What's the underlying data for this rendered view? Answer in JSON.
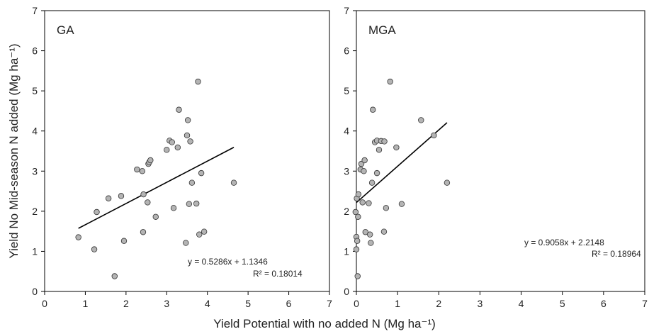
{
  "shared": {
    "xlabel": "Yield Potential with no added N (Mg ha⁻¹)",
    "ylabel": "Yield No Mid-season N added (Mg ha⁻¹)"
  },
  "chart_data": [
    {
      "type": "scatter",
      "title": "GA",
      "xlim": [
        0,
        7
      ],
      "ylim": [
        0,
        7
      ],
      "xticks": [
        "0",
        "1",
        "2",
        "3",
        "4",
        "5",
        "6",
        "7"
      ],
      "yticks": [
        "0",
        "1",
        "2",
        "3",
        "4",
        "5",
        "6",
        "7"
      ],
      "grid": false,
      "x": [
        0.83,
        1.22,
        1.28,
        1.57,
        1.72,
        1.88,
        1.95,
        2.27,
        2.4,
        2.42,
        2.43,
        2.53,
        2.55,
        2.57,
        2.6,
        2.73,
        3.0,
        3.07,
        3.13,
        3.17,
        3.27,
        3.3,
        3.47,
        3.5,
        3.52,
        3.55,
        3.58,
        3.62,
        3.73,
        3.77,
        3.8,
        3.85,
        3.92,
        4.65
      ],
      "y": [
        1.35,
        1.05,
        1.98,
        2.32,
        0.38,
        2.38,
        1.26,
        3.04,
        3.0,
        1.48,
        2.42,
        2.22,
        3.18,
        3.22,
        3.27,
        1.86,
        3.53,
        3.76,
        3.72,
        2.08,
        3.59,
        4.53,
        1.21,
        3.89,
        4.27,
        2.18,
        3.74,
        2.71,
        2.19,
        5.23,
        1.42,
        2.95,
        1.49,
        2.71
      ],
      "fit": {
        "slope": 0.5286,
        "intercept": 1.1346,
        "x_range": [
          0.83,
          4.65
        ]
      },
      "equation": "y = 0.5286x + 1.1346",
      "r2": "R² = 0.18014"
    },
    {
      "type": "scatter",
      "title": "MGA",
      "xlim": [
        0,
        7
      ],
      "ylim": [
        0,
        7
      ],
      "xticks": [
        "0",
        "1",
        "2",
        "3",
        "4",
        "5",
        "6",
        "7"
      ],
      "yticks": [
        "0",
        "1",
        "2",
        "3",
        "4",
        "5",
        "6",
        "7"
      ],
      "grid": false,
      "x": [
        -0.02,
        0.0,
        0.0,
        0.01,
        0.02,
        0.03,
        0.04,
        0.05,
        0.1,
        0.12,
        0.15,
        0.18,
        0.2,
        0.22,
        0.3,
        0.33,
        0.35,
        0.38,
        0.4,
        0.45,
        0.5,
        0.5,
        0.55,
        0.6,
        0.67,
        0.68,
        0.72,
        0.82,
        0.97,
        1.1,
        1.57,
        1.88,
        2.2
      ],
      "y": [
        1.98,
        1.36,
        1.05,
        2.32,
        1.26,
        0.38,
        1.86,
        2.42,
        3.04,
        3.18,
        2.22,
        3.0,
        3.27,
        1.48,
        2.2,
        1.42,
        1.21,
        2.71,
        4.53,
        3.72,
        2.95,
        3.76,
        3.53,
        3.75,
        1.49,
        3.74,
        2.08,
        5.23,
        3.59,
        2.18,
        4.27,
        3.89,
        2.71
      ],
      "fit": {
        "slope": 0.9058,
        "intercept": 2.2148,
        "x_range": [
          0.0,
          2.2
        ]
      },
      "equation": "y = 0.9058x + 2.2148",
      "r2": "R² = 0.18964"
    }
  ]
}
